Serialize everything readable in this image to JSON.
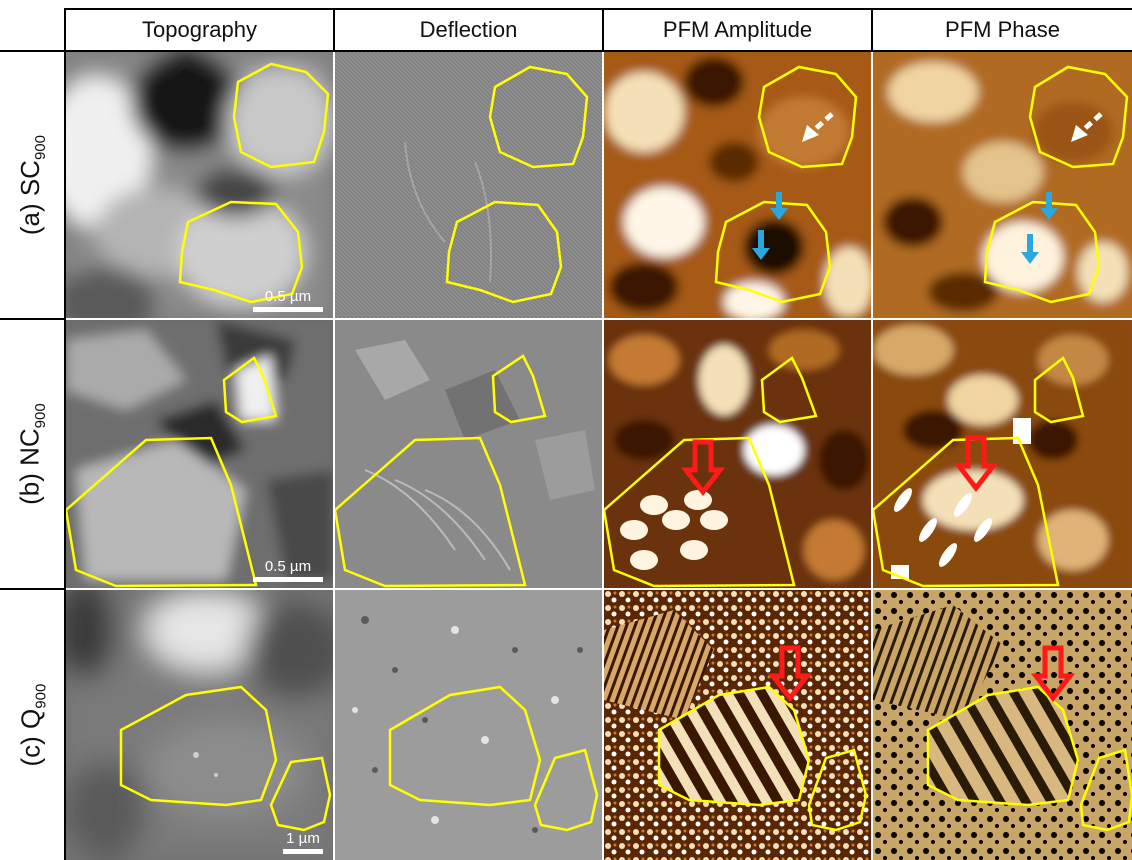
{
  "columns": [
    "Topography",
    "Deflection",
    "PFM Amplitude",
    "PFM Phase"
  ],
  "rows": [
    {
      "label_prefix": "(a) SC",
      "label_sub": "900"
    },
    {
      "label_prefix": "(b) NC",
      "label_sub": "900"
    },
    {
      "label_prefix": "(c) Q",
      "label_sub": "900"
    }
  ],
  "scale_bars": [
    "0.5 µm",
    "0.5 µm",
    "1 µm"
  ],
  "colors": {
    "outline": "#ffff00",
    "arrow_white": "#ffffff",
    "arrow_blue": "#29a8e0",
    "arrow_red": "#ff1a1a",
    "pfm_dark": "#3a1800",
    "pfm_mid": "#a65a12",
    "pfm_light": "#f4e0b8",
    "phase_q": "#c9a566"
  }
}
